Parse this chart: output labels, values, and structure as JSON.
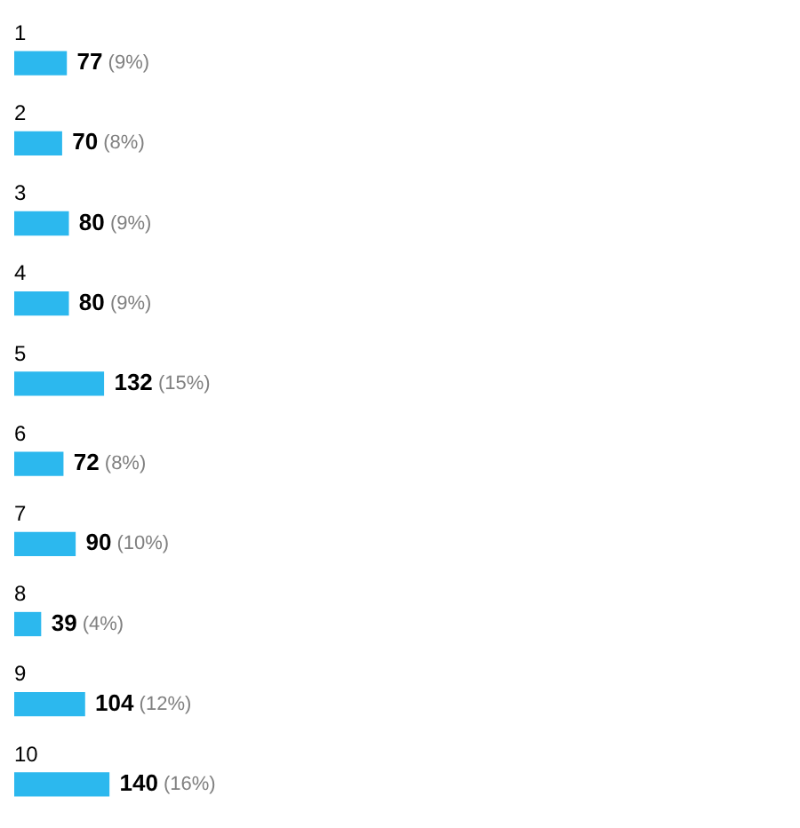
{
  "chart_data": {
    "type": "bar",
    "orientation": "horizontal",
    "categories": [
      "1",
      "2",
      "3",
      "4",
      "5",
      "6",
      "7",
      "8",
      "9",
      "10"
    ],
    "values": [
      77,
      70,
      80,
      80,
      132,
      72,
      90,
      39,
      104,
      140
    ],
    "value_labels": [
      "77 (9%)",
      "70 (8%)",
      "80 (9%)",
      "80 (9%)",
      "132 (15%)",
      "72 (8%)",
      "90 (10%)",
      "39 (4%)",
      "104 (12%)",
      "140 (16%)"
    ],
    "color": "#2cb8ee",
    "tick_labels": false
  }
}
